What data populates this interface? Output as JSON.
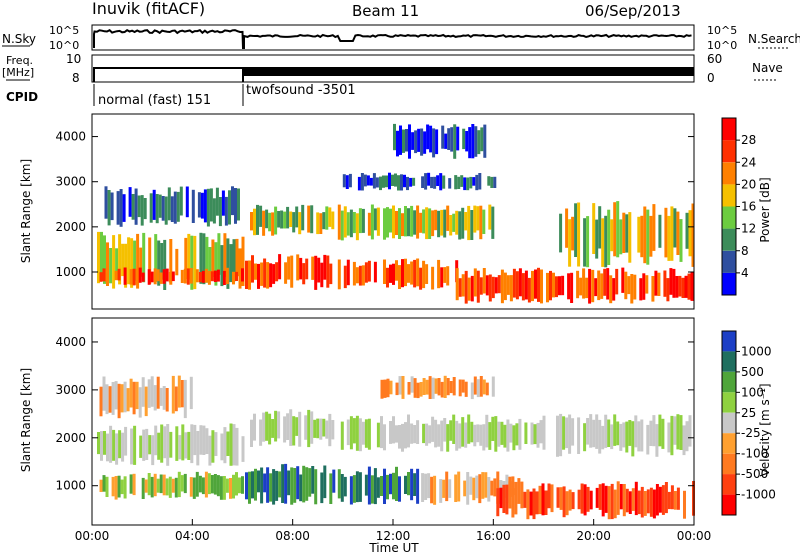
{
  "header": {
    "title": "Inuvik (fitACF)",
    "beam": "Beam 11",
    "date": "06/Sep/2013"
  },
  "top_panels": {
    "nsky_label": "N.Sky",
    "nsearch_label": "N.Search",
    "freq_label": "Freq.",
    "freq_unit": "[MHz]",
    "nave_label": "Nave",
    "cpid_label": "CPID",
    "left_ticks_top": [
      "10^5",
      "10^0"
    ],
    "right_ticks_top": [
      "10^5",
      "10^0"
    ],
    "left_ticks_freq": [
      "10",
      "8"
    ],
    "right_ticks_nave": [
      "60",
      "0"
    ],
    "cpid_modes": [
      "normal (fast) 151",
      "twofsound -3501"
    ]
  },
  "chart_data": [
    {
      "type": "heatmap",
      "name": "power",
      "ylabel": "Slant Range [km]",
      "xlabel": "Time UT",
      "x_ticks": [
        "00:00",
        "04:00",
        "08:00",
        "12:00",
        "16:00",
        "20:00",
        "00:00"
      ],
      "y_ticks": [
        "1000",
        "2000",
        "3000",
        "4000"
      ],
      "x_range_hours": [
        0,
        24
      ],
      "y_range_km": [
        180,
        4500
      ],
      "colorbar_label": "Power [dB]",
      "colorbar_ticks": [
        "4",
        "8",
        "12",
        "16",
        "20",
        "24",
        "28"
      ],
      "colorbar_colors": [
        "#0000ff",
        "#2f4f9f",
        "#3c8c5a",
        "#6ccc40",
        "#f5c000",
        "#ff8000",
        "#ff3000",
        "#ff0000"
      ],
      "regions": [
        {
          "t": [
            0.2,
            6.0
          ],
          "r": [
            600,
            1900
          ],
          "level": "mid"
        },
        {
          "t": [
            0.3,
            6.0
          ],
          "r": [
            700,
            1100
          ],
          "level": "high"
        },
        {
          "t": [
            0.5,
            5.8
          ],
          "r": [
            2000,
            2900
          ],
          "level": "low"
        },
        {
          "t": [
            6.1,
            9.6
          ],
          "r": [
            600,
            1400
          ],
          "level": "high"
        },
        {
          "t": [
            6.3,
            9.6
          ],
          "r": [
            1800,
            2500
          ],
          "level": "mid"
        },
        {
          "t": [
            9.8,
            14.5
          ],
          "r": [
            600,
            1300
          ],
          "level": "high"
        },
        {
          "t": [
            9.8,
            16.0
          ],
          "r": [
            1700,
            2500
          ],
          "level": "mid"
        },
        {
          "t": [
            10.0,
            16.0
          ],
          "r": [
            2800,
            3200
          ],
          "level": "low"
        },
        {
          "t": [
            14.5,
            24.0
          ],
          "r": [
            300,
            1100
          ],
          "level": "high"
        },
        {
          "t": [
            18.5,
            24.0
          ],
          "r": [
            1100,
            2600
          ],
          "level": "mid"
        },
        {
          "t": [
            12.0,
            16.0
          ],
          "r": [
            3500,
            4300
          ],
          "level": "low"
        }
      ]
    },
    {
      "type": "heatmap",
      "name": "velocity",
      "ylabel": "Slant Range [km]",
      "xlabel": "Time UT",
      "x_ticks": [
        "00:00",
        "04:00",
        "08:00",
        "12:00",
        "16:00",
        "20:00",
        "00:00"
      ],
      "y_ticks": [
        "1000",
        "2000",
        "3000",
        "4000"
      ],
      "x_range_hours": [
        0,
        24
      ],
      "y_range_km": [
        180,
        4500
      ],
      "colorbar_label": "Velocity [m s⁻¹]",
      "colorbar_ticks": [
        "1000",
        "500",
        "100",
        "25",
        "-25",
        "-100",
        "-500",
        "-1000"
      ],
      "colorbar_colors": [
        "#1c3fc6",
        "#1f6f5f",
        "#4fa53a",
        "#8fd140",
        "#c8c8c8",
        "#ffa030",
        "#ff7a20",
        "#ff4010",
        "#ff0000"
      ],
      "regions": [
        {
          "t": [
            0.2,
            6.0
          ],
          "r": [
            1400,
            2300
          ],
          "level": "grey"
        },
        {
          "t": [
            0.3,
            6.0
          ],
          "r": [
            700,
            1300
          ],
          "level": "green"
        },
        {
          "t": [
            0.3,
            4.0
          ],
          "r": [
            2400,
            3300
          ],
          "level": "orange"
        },
        {
          "t": [
            6.1,
            9.6
          ],
          "r": [
            600,
            1500
          ],
          "level": "darkgreen"
        },
        {
          "t": [
            6.3,
            9.6
          ],
          "r": [
            1800,
            2600
          ],
          "level": "grey"
        },
        {
          "t": [
            9.8,
            13.0
          ],
          "r": [
            600,
            1400
          ],
          "level": "darkgreen"
        },
        {
          "t": [
            9.8,
            18.0
          ],
          "r": [
            1700,
            2500
          ],
          "level": "grey"
        },
        {
          "t": [
            13.0,
            17.0
          ],
          "r": [
            600,
            1300
          ],
          "level": "orange"
        },
        {
          "t": [
            16.0,
            24.0
          ],
          "r": [
            300,
            1100
          ],
          "level": "red"
        },
        {
          "t": [
            18.5,
            24.0
          ],
          "r": [
            1600,
            2500
          ],
          "level": "grey"
        },
        {
          "t": [
            11.5,
            16.0
          ],
          "r": [
            2800,
            3300
          ],
          "level": "orange"
        }
      ]
    }
  ]
}
